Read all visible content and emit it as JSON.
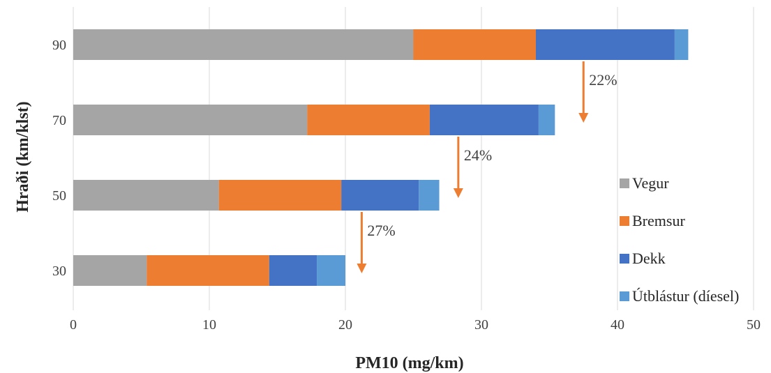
{
  "chart_data": {
    "type": "bar",
    "orientation": "horizontal",
    "stacked": true,
    "title": "",
    "xlabel": "PM10 (mg/km)",
    "ylabel": "Hraði (km/klst)",
    "xlim": [
      0,
      50
    ],
    "xticks": [
      0,
      10,
      20,
      30,
      40,
      50
    ],
    "grid": "vertical",
    "legend_position": "right",
    "categories": [
      "90",
      "70",
      "50",
      "30"
    ],
    "series": [
      {
        "name": "Vegur",
        "color": "#a5a5a5",
        "values": [
          25.0,
          17.2,
          10.7,
          5.4
        ]
      },
      {
        "name": "Bremsur",
        "color": "#ed7d31",
        "values": [
          9.0,
          9.0,
          9.0,
          9.0
        ]
      },
      {
        "name": "Dekk",
        "color": "#4472c4",
        "values": [
          10.2,
          8.0,
          5.7,
          3.5
        ]
      },
      {
        "name": "Útblástur (díesel)",
        "color": "#5b9bd5",
        "values": [
          1.0,
          1.2,
          1.5,
          2.1
        ]
      }
    ],
    "annotations": [
      {
        "text": "22%",
        "x": 37.5,
        "y_from": "90",
        "y_to": "70",
        "color": "#ed7d31"
      },
      {
        "text": "24%",
        "x": 28.3,
        "y_from": "70",
        "y_to": "50",
        "color": "#ed7d31"
      },
      {
        "text": "27%",
        "x": 21.2,
        "y_from": "50",
        "y_to": "30",
        "color": "#ed7d31"
      }
    ]
  }
}
